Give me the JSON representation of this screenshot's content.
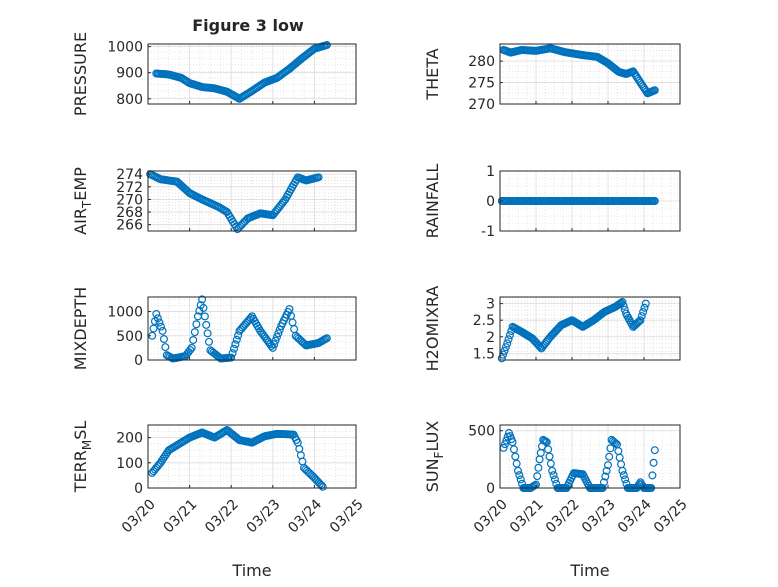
{
  "figure": {
    "title": "Figure 3 low",
    "marker_color": "#0072BD"
  },
  "chart_data": [
    {
      "type": "scatter",
      "id": "pressure",
      "ylabel": "PRESSURE",
      "ylim": [
        780,
        1010
      ],
      "yticks": [
        800,
        900,
        1000
      ],
      "ytick_labels": [
        "800",
        "900",
        "1000"
      ],
      "xlim": [
        "03/20",
        "03/25"
      ],
      "grid": "on",
      "xticks_labeled": false,
      "keypoints": [
        [
          0.2,
          897
        ],
        [
          0.5,
          893
        ],
        [
          0.8,
          880
        ],
        [
          1.0,
          860
        ],
        [
          1.3,
          845
        ],
        [
          1.6,
          840
        ],
        [
          1.9,
          827
        ],
        [
          2.2,
          800
        ],
        [
          2.5,
          830
        ],
        [
          2.8,
          862
        ],
        [
          3.1,
          880
        ],
        [
          3.4,
          915
        ],
        [
          3.7,
          955
        ],
        [
          4.0,
          992
        ],
        [
          4.3,
          1006
        ]
      ]
    },
    {
      "type": "scatter",
      "id": "theta",
      "ylabel": "THETA",
      "ylim": [
        270,
        284
      ],
      "yticks": [
        270,
        275,
        280
      ],
      "ytick_labels": [
        "270",
        "275",
        "280"
      ],
      "xlim": [
        "03/20",
        "03/25"
      ],
      "grid": "on",
      "xticks_labeled": false,
      "keypoints": [
        [
          0.1,
          282.6
        ],
        [
          0.3,
          282.0
        ],
        [
          0.6,
          282.6
        ],
        [
          1.0,
          282.4
        ],
        [
          1.4,
          283.0
        ],
        [
          1.8,
          282.1
        ],
        [
          2.3,
          281.4
        ],
        [
          2.7,
          281.0
        ],
        [
          3.0,
          279.5
        ],
        [
          3.3,
          277.5
        ],
        [
          3.5,
          277.0
        ],
        [
          3.7,
          277.6
        ],
        [
          3.9,
          275.0
        ],
        [
          4.1,
          272.5
        ],
        [
          4.3,
          273.2
        ]
      ]
    },
    {
      "type": "scatter",
      "id": "air_temp",
      "ylabel": "AIR_TEMP",
      "ylabel_display": [
        "AIR",
        "T",
        "EMP"
      ],
      "ylim": [
        265,
        274.5
      ],
      "yticks": [
        266,
        268,
        270,
        272,
        274
      ],
      "ytick_labels": [
        "266",
        "268",
        "270",
        "272",
        "274"
      ],
      "xlim": [
        "03/20",
        "03/25"
      ],
      "grid": "on",
      "xticks_labeled": false,
      "keypoints": [
        [
          0.05,
          274.0
        ],
        [
          0.3,
          273.2
        ],
        [
          0.7,
          272.8
        ],
        [
          1.0,
          271.0
        ],
        [
          1.3,
          270.0
        ],
        [
          1.7,
          268.8
        ],
        [
          1.9,
          268.0
        ],
        [
          2.15,
          265.3
        ],
        [
          2.4,
          267.0
        ],
        [
          2.7,
          267.8
        ],
        [
          3.0,
          267.5
        ],
        [
          3.3,
          270.0
        ],
        [
          3.6,
          273.5
        ],
        [
          3.8,
          273.0
        ],
        [
          4.1,
          273.5
        ]
      ]
    },
    {
      "type": "scatter",
      "id": "rainfall",
      "ylabel": "RAINFALL",
      "ylim": [
        -1,
        1
      ],
      "yticks": [
        -1,
        0,
        1
      ],
      "ytick_labels": [
        "-1",
        "0",
        "1"
      ],
      "xlim": [
        "03/20",
        "03/25"
      ],
      "grid": "on",
      "xticks_labeled": false,
      "keypoints": [
        [
          0.05,
          0
        ],
        [
          4.3,
          0
        ]
      ]
    },
    {
      "type": "scatter",
      "id": "mixdepth",
      "ylabel": "MIXDEPTH",
      "ylim": [
        0,
        1300
      ],
      "yticks": [
        0,
        500,
        1000
      ],
      "ytick_labels": [
        "0",
        "500",
        "1000"
      ],
      "xlim": [
        "03/20",
        "03/25"
      ],
      "grid": "on",
      "xticks_labeled": false,
      "keypoints": [
        [
          0.1,
          500
        ],
        [
          0.2,
          950
        ],
        [
          0.35,
          600
        ],
        [
          0.45,
          100
        ],
        [
          0.6,
          30
        ],
        [
          0.9,
          80
        ],
        [
          1.05,
          250
        ],
        [
          1.2,
          900
        ],
        [
          1.3,
          1250
        ],
        [
          1.5,
          200
        ],
        [
          1.75,
          30
        ],
        [
          2.0,
          50
        ],
        [
          2.2,
          600
        ],
        [
          2.5,
          900
        ],
        [
          2.7,
          600
        ],
        [
          3.0,
          250
        ],
        [
          3.2,
          700
        ],
        [
          3.4,
          1050
        ],
        [
          3.55,
          500
        ],
        [
          3.8,
          300
        ],
        [
          4.1,
          350
        ],
        [
          4.3,
          450
        ]
      ]
    },
    {
      "type": "scatter",
      "id": "h2omixra",
      "ylabel": "H2OMIXRA",
      "ylim": [
        1.3,
        3.2
      ],
      "yticks": [
        1.5,
        2,
        2.5,
        3
      ],
      "ytick_labels": [
        "1.5",
        "2",
        "2.5",
        "3"
      ],
      "xlim": [
        "03/20",
        "03/25"
      ],
      "grid": "on",
      "xticks_labeled": false,
      "keypoints": [
        [
          0.05,
          1.35
        ],
        [
          0.2,
          1.8
        ],
        [
          0.35,
          2.3
        ],
        [
          0.6,
          2.15
        ],
        [
          0.9,
          1.95
        ],
        [
          1.15,
          1.65
        ],
        [
          1.4,
          2.0
        ],
        [
          1.7,
          2.35
        ],
        [
          2.0,
          2.5
        ],
        [
          2.3,
          2.3
        ],
        [
          2.6,
          2.5
        ],
        [
          2.9,
          2.75
        ],
        [
          3.2,
          2.9
        ],
        [
          3.4,
          3.05
        ],
        [
          3.5,
          2.7
        ],
        [
          3.7,
          2.3
        ],
        [
          3.9,
          2.5
        ],
        [
          4.05,
          3.0
        ]
      ]
    },
    {
      "type": "scatter",
      "id": "terr_msl",
      "ylabel": "TERR_MSL",
      "ylabel_display": [
        "TERR",
        "M",
        "SL"
      ],
      "ylim": [
        0,
        250
      ],
      "yticks": [
        0,
        100,
        200
      ],
      "ytick_labels": [
        "0",
        "100",
        "200"
      ],
      "xlim": [
        "03/20",
        "03/25"
      ],
      "grid": "on",
      "xticks_labeled": true,
      "xtick_labels": [
        "03/20",
        "03/21",
        "03/22",
        "03/23",
        "03/24",
        "03/25"
      ],
      "xlabel": "Time",
      "keypoints": [
        [
          0.1,
          60
        ],
        [
          0.3,
          100
        ],
        [
          0.5,
          150
        ],
        [
          0.8,
          180
        ],
        [
          1.0,
          200
        ],
        [
          1.3,
          220
        ],
        [
          1.6,
          200
        ],
        [
          1.9,
          230
        ],
        [
          2.2,
          190
        ],
        [
          2.5,
          180
        ],
        [
          2.8,
          205
        ],
        [
          3.1,
          215
        ],
        [
          3.5,
          212
        ],
        [
          3.6,
          180
        ],
        [
          3.75,
          80
        ],
        [
          4.0,
          40
        ],
        [
          4.2,
          5
        ]
      ]
    },
    {
      "type": "scatter",
      "id": "sun_flux",
      "ylabel": "SUN_FLUX",
      "ylabel_display": [
        "SUN",
        "F",
        "LUX"
      ],
      "ylim": [
        0,
        550
      ],
      "yticks": [
        0,
        500
      ],
      "ytick_labels": [
        "0",
        "500"
      ],
      "xlim": [
        "03/20",
        "03/25"
      ],
      "grid": "on",
      "xticks_labeled": true,
      "xtick_labels": [
        "03/20",
        "03/21",
        "03/22",
        "03/23",
        "03/24",
        "03/25"
      ],
      "xlabel": "Time",
      "keypoints": [
        [
          0.1,
          350
        ],
        [
          0.25,
          480
        ],
        [
          0.35,
          400
        ],
        [
          0.5,
          150
        ],
        [
          0.65,
          0
        ],
        [
          0.85,
          0
        ],
        [
          1.0,
          30
        ],
        [
          1.1,
          250
        ],
        [
          1.2,
          420
        ],
        [
          1.3,
          400
        ],
        [
          1.45,
          150
        ],
        [
          1.6,
          0
        ],
        [
          1.85,
          0
        ],
        [
          2.05,
          130
        ],
        [
          2.3,
          120
        ],
        [
          2.5,
          0
        ],
        [
          2.85,
          0
        ],
        [
          3.0,
          200
        ],
        [
          3.1,
          420
        ],
        [
          3.25,
          380
        ],
        [
          3.4,
          150
        ],
        [
          3.55,
          0
        ],
        [
          3.8,
          0
        ],
        [
          3.9,
          50
        ],
        [
          4.0,
          0
        ],
        [
          4.2,
          0
        ],
        [
          4.3,
          330
        ]
      ]
    }
  ]
}
